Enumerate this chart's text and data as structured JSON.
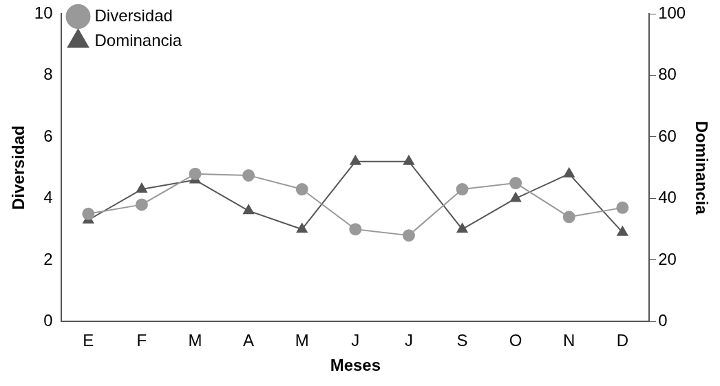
{
  "chart_data": {
    "type": "line",
    "xlabel": "Meses",
    "ylabel": "Diversidad",
    "y2label": "Dominancia",
    "categories": [
      "E",
      "F",
      "M",
      "A",
      "M",
      "J",
      "J",
      "S",
      "O",
      "N",
      "D"
    ],
    "series": [
      {
        "name": "Diversidad",
        "color": "#999999",
        "marker": "circle",
        "values": [
          3.5,
          3.8,
          4.8,
          4.75,
          4.3,
          3.0,
          2.8,
          4.3,
          4.5,
          3.4,
          3.7
        ]
      },
      {
        "name": "Dominancia",
        "color": "#555555",
        "marker": "triangle",
        "axis": "y2",
        "values": [
          33,
          43,
          46,
          36,
          30,
          52,
          52,
          30,
          40,
          48,
          29
        ]
      }
    ],
    "ylim": [
      0,
      10
    ],
    "yticks": [
      0,
      2,
      4,
      6,
      8,
      10
    ],
    "y2lim": [
      0,
      100
    ],
    "y2ticks": [
      0,
      20,
      40,
      60,
      80,
      100
    ],
    "grid": false,
    "legend": "top left"
  }
}
